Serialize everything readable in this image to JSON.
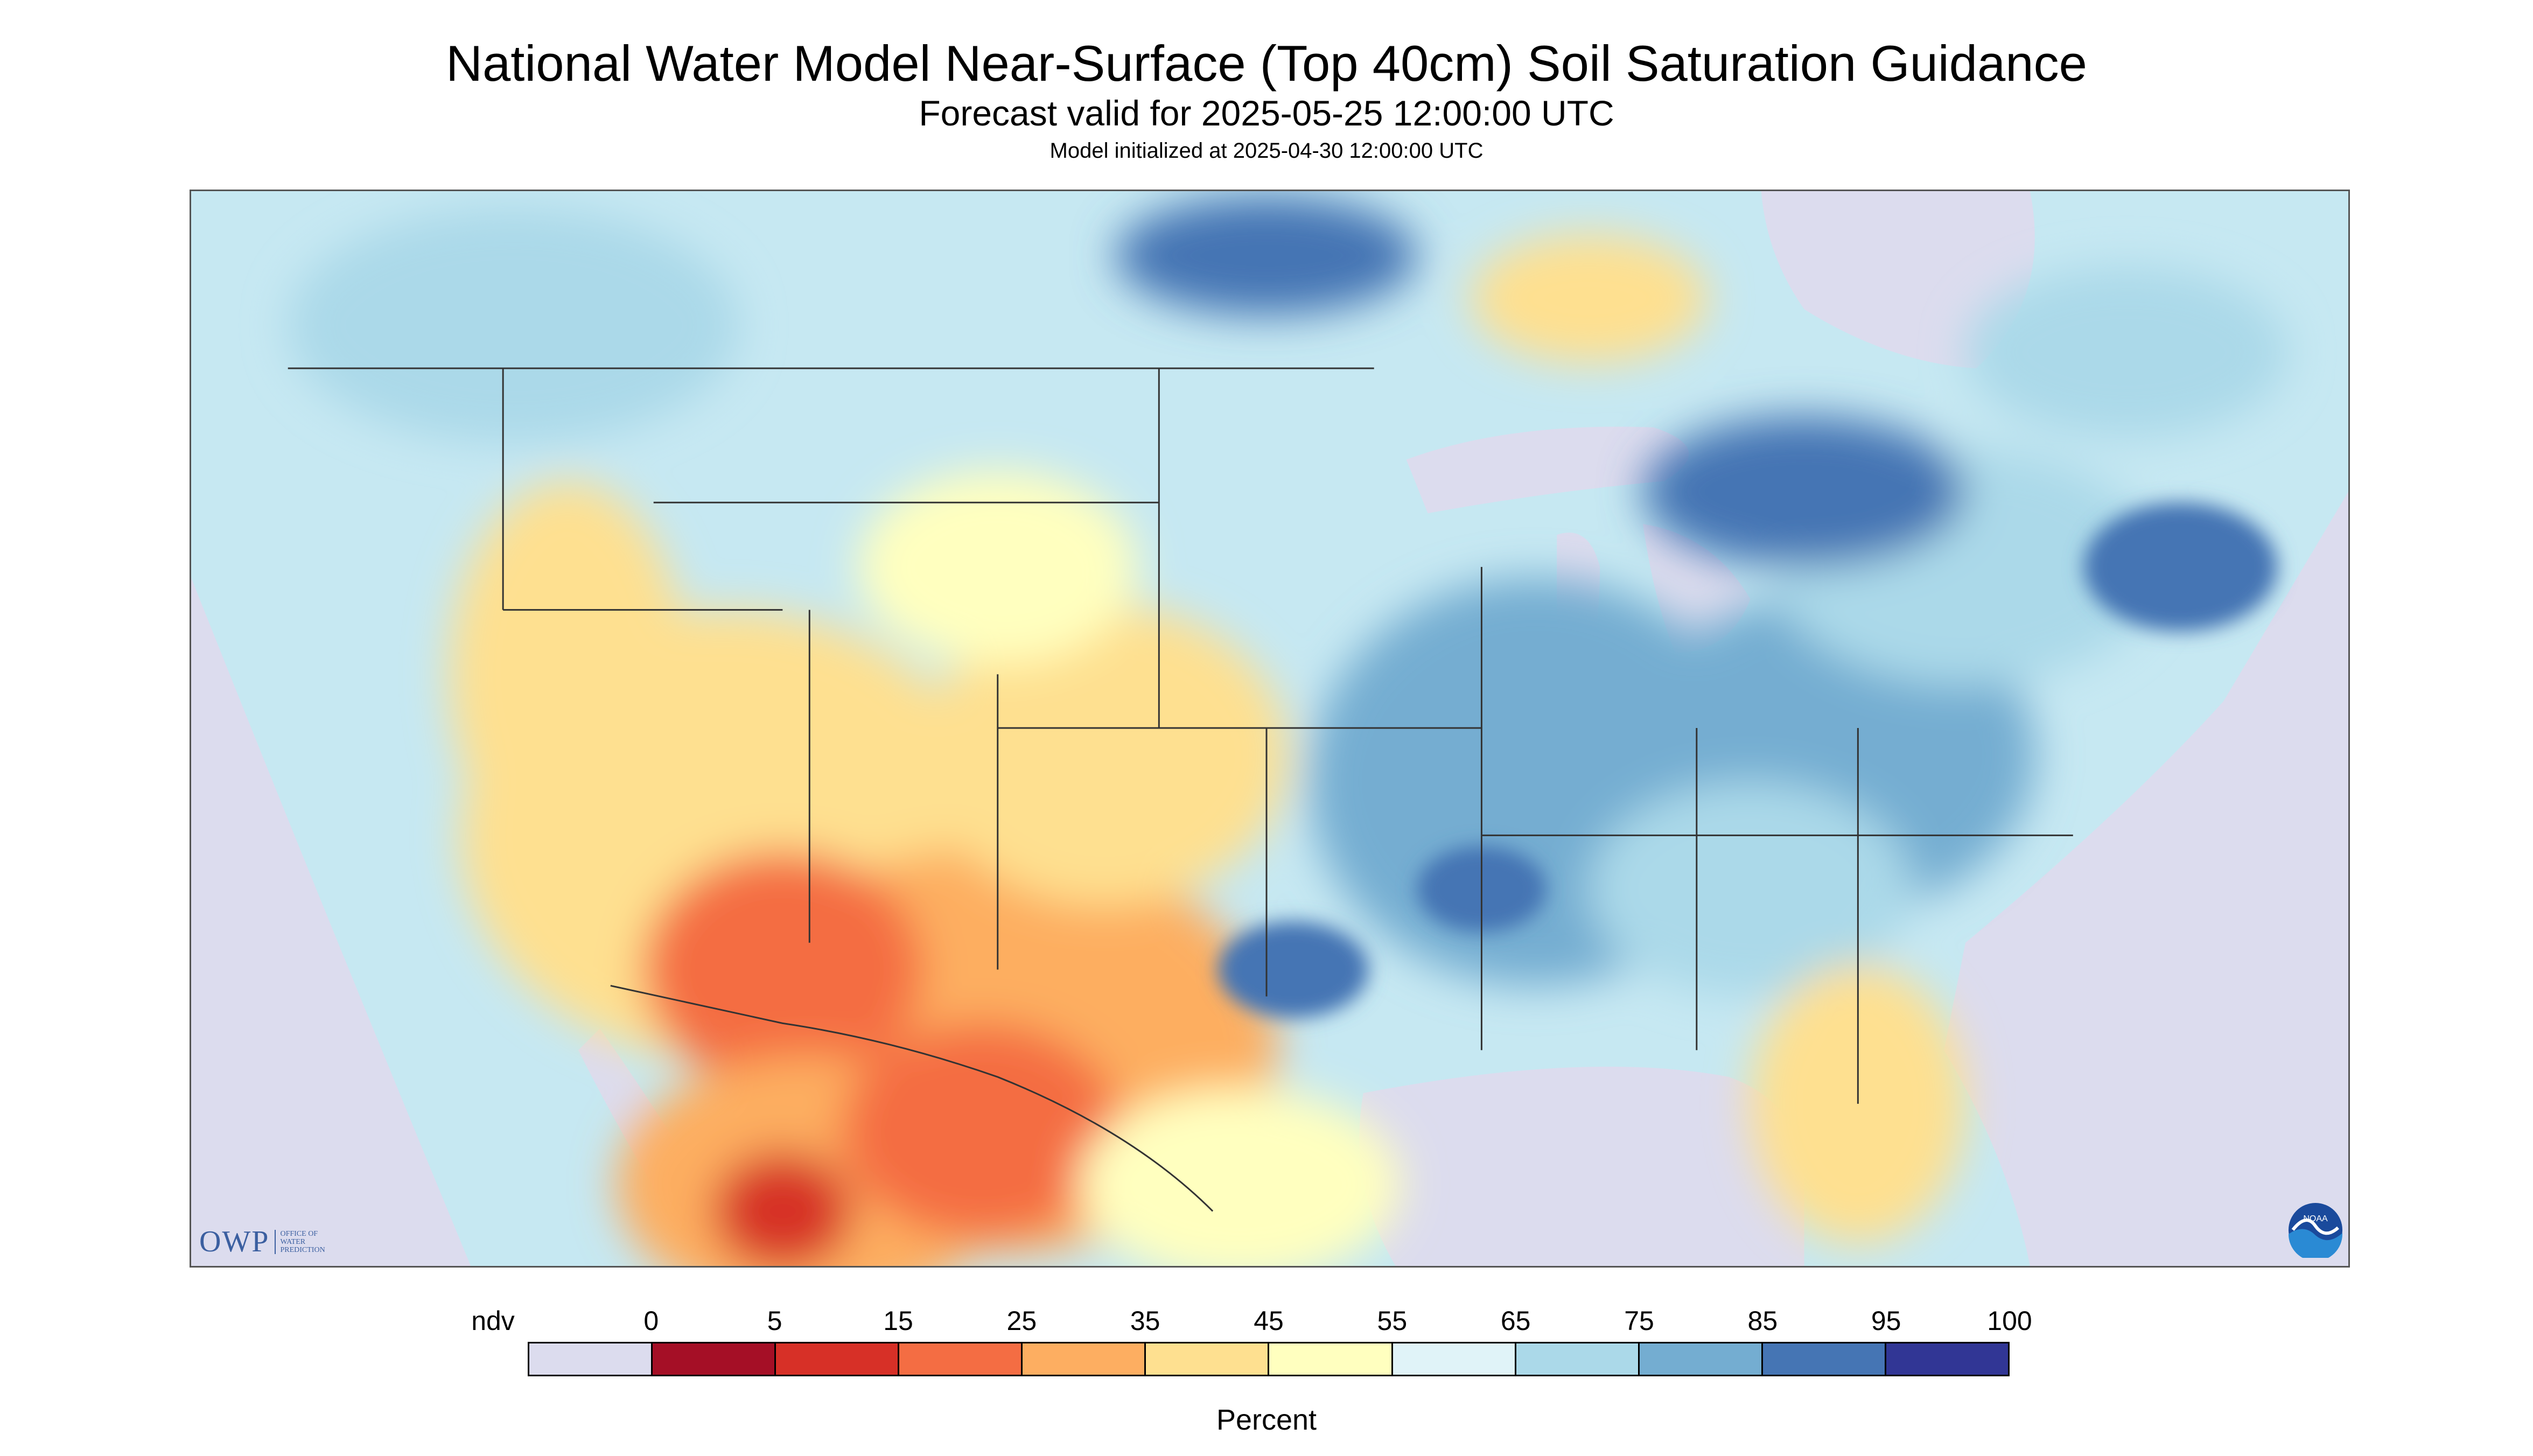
{
  "title": "National Water Model Near-Surface (Top 40cm) Soil Saturation Guidance",
  "subtitle": "Forecast valid for 2025-05-25 12:00:00 UTC",
  "init_text": "Model initialized at 2025-04-30 12:00:00 UTC",
  "logos": {
    "owp_text": "OWP",
    "owp_sub": [
      "OFFICE OF",
      "WATER",
      "PREDICTION"
    ],
    "noaa_text": "NOAA"
  },
  "legend": {
    "unit": "Percent",
    "labels": [
      "ndv",
      "0",
      "5",
      "15",
      "25",
      "35",
      "45",
      "55",
      "65",
      "75",
      "85",
      "95",
      "100"
    ],
    "colors": [
      "#dcdcee",
      "#a50f26",
      "#d73027",
      "#f46d43",
      "#fdae61",
      "#fee090",
      "#ffffbf",
      "#e0f3f8",
      "#abd9e9",
      "#74add1",
      "#4575b4",
      "#313695"
    ]
  },
  "map_colors": {
    "no_data": "#dcdcee",
    "water": "#dcdcee",
    "land_wet": "#abd9e9",
    "land_moist": "#c6e8f2",
    "land_dry": "#fee090",
    "land_very_dry": "#fdae61",
    "land_extreme": "#d73027",
    "land_saturated": "#4575b4",
    "border": "#333333"
  }
}
